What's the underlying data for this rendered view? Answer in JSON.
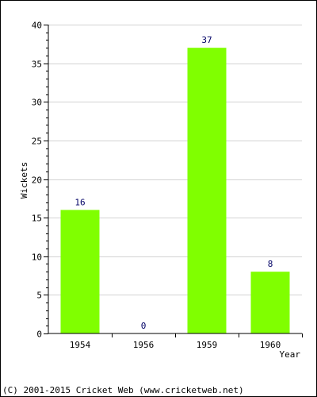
{
  "chart_data": {
    "type": "bar",
    "categories": [
      "1954",
      "1956",
      "1959",
      "1960"
    ],
    "values": [
      16,
      0,
      37,
      8
    ],
    "data_labels": [
      "16",
      "0",
      "37",
      "8"
    ],
    "xlabel": "Year",
    "ylabel": "Wickets",
    "ylim": [
      0,
      40
    ],
    "yticks": [
      0,
      5,
      10,
      15,
      20,
      25,
      30,
      35,
      40
    ],
    "grid": true,
    "bar_color": "#80FF00",
    "grid_color": "#D3D3D3",
    "label_color": "#000066"
  },
  "footer": {
    "copyright": "(C) 2001-2015 Cricket Web (www.cricketweb.net)"
  }
}
